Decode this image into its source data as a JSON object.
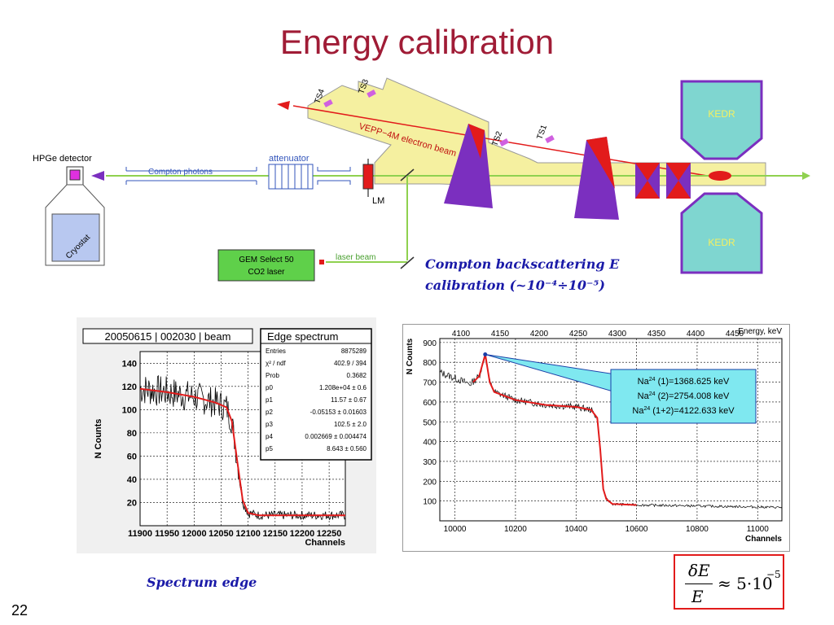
{
  "title": "Energy calibration",
  "page_number": "22",
  "diagram": {
    "hpge_label": "HPGe detector",
    "cryostat_label": "Cryostat",
    "compton_photons_label": "Compton photons",
    "attenuator_label": "attenuator",
    "lm_label": "LM",
    "laser_box_line1": "GEM Select 50",
    "laser_box_line2": "CO2 laser",
    "laser_beam_label": "laser beam",
    "beam_label": "VEPP−4M electron beam",
    "ts_labels": [
      "TS4",
      "TS3",
      "TS2",
      "TS1"
    ],
    "kedr_label": "KEDR",
    "compton_caption_line1": "Compton backscattering E",
    "compton_caption_line2": "calibration (~10⁻⁴÷10⁻⁵)",
    "colors": {
      "beamline": "#f5f0a0",
      "magnet": "#7b2fbf",
      "red": "#e21b1b",
      "kedr": "#7fd6d0",
      "laser_box": "#5fd04a"
    }
  },
  "edge_caption": "Spectrum edge",
  "formula": {
    "numerator": "δE",
    "denominator": "E",
    "rhs": "≈ 5·10",
    "exponent": "−5"
  },
  "chart_data": [
    {
      "type": "line",
      "title": "20050615 | 002030 | beam",
      "xlabel": "Channels",
      "ylabel": "N Counts",
      "xlim": [
        11900,
        12280
      ],
      "ylim": [
        0,
        150
      ],
      "x_ticks": [
        "11900",
        "11950",
        "12000",
        "12050",
        "12100",
        "12150",
        "12200",
        "12250"
      ],
      "y_ticks": [
        "20",
        "40",
        "60",
        "80",
        "100",
        "120",
        "140"
      ],
      "grid": true,
      "series": [
        {
          "x": [
            11900,
            11950,
            12000,
            12040,
            12060,
            12070,
            12080,
            12090,
            12100,
            12120,
            12150,
            12200,
            12280
          ],
          "values": [
            118,
            115,
            111,
            106,
            102,
            90,
            55,
            22,
            11,
            9,
            9,
            9,
            9
          ]
        }
      ],
      "stats_box": {
        "title": "Edge spectrum",
        "rows": [
          [
            "Entries",
            "8875289"
          ],
          [
            "χ² / ndf",
            "402.9 / 394"
          ],
          [
            "Prob",
            "0.3682"
          ],
          [
            "p0",
            "1.208e+04 ± 0.6"
          ],
          [
            "p1",
            "11.57 ± 0.67"
          ],
          [
            "p2",
            "-0.05153 ± 0.01603"
          ],
          [
            "p3",
            "102.5 ± 2.0"
          ],
          [
            "p4",
            "0.002669 ± 0.004474"
          ],
          [
            "p5",
            "8.643 ± 0.560"
          ]
        ]
      }
    },
    {
      "type": "line",
      "title": "",
      "xlabel": "Channels",
      "ylabel": "N Counts",
      "x2label": "Energy, keV",
      "xlim": [
        9950,
        11080
      ],
      "ylim": [
        0,
        920
      ],
      "x_ticks": [
        "10000",
        "10200",
        "10400",
        "10600",
        "10800",
        "11000"
      ],
      "x2_ticks": [
        "4100",
        "4150",
        "4200",
        "4250",
        "4300",
        "4350",
        "4400",
        "4450"
      ],
      "y_ticks": [
        "100",
        "200",
        "300",
        "400",
        "500",
        "600",
        "700",
        "800",
        "900"
      ],
      "grid": true,
      "series": [
        {
          "x": [
            9950,
            10000,
            10050,
            10080,
            10100,
            10115,
            10130,
            10200,
            10300,
            10400,
            10450,
            10470,
            10480,
            10490,
            10500,
            10520,
            10600,
            10800,
            11000,
            11080
          ],
          "values": [
            750,
            720,
            690,
            730,
            840,
            700,
            650,
            610,
            585,
            575,
            560,
            520,
            360,
            160,
            110,
            85,
            80,
            75,
            70,
            68
          ]
        }
      ],
      "annotation_lines": [
        "(1)=1368.625 keV",
        "(2)=2754.008 keV",
        "(1+2)=4122.633 keV"
      ],
      "annotation_prefix": "Na",
      "annotation_sup": "24"
    }
  ]
}
